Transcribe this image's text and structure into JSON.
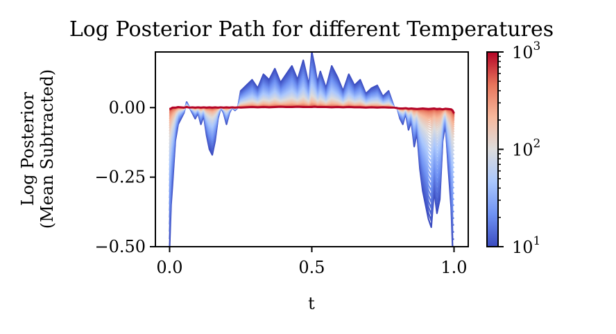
{
  "chart_data": {
    "type": "line",
    "title": "Log Posterior Path for different Temperatures",
    "xlabel": "t",
    "ylabel_lines": [
      "Log Posterior",
      "(Mean Subtracted)"
    ],
    "xlim": [
      -0.05,
      1.05
    ],
    "ylim": [
      -0.5,
      0.2
    ],
    "x_ticks": [
      {
        "value": 0.0,
        "label": "0.0"
      },
      {
        "value": 0.5,
        "label": "0.5"
      },
      {
        "value": 1.0,
        "label": "1.0"
      }
    ],
    "y_ticks": [
      {
        "value": 0.0,
        "label": "0.00"
      },
      {
        "value": -0.25,
        "label": "−0.25"
      },
      {
        "value": -0.5,
        "label": "−0.50"
      }
    ],
    "colorbar": {
      "scale": "log",
      "range": [
        10,
        1000
      ],
      "colormap": "coolwarm",
      "ticks": [
        {
          "value": 10,
          "base": "10",
          "exp": "1"
        },
        {
          "value": 100,
          "base": "10",
          "exp": "2"
        },
        {
          "value": 1000,
          "base": "10",
          "exp": "3"
        }
      ],
      "colors": [
        "#3b4cc0",
        "#6f92f3",
        "#aac7fd",
        "#dddcdc",
        "#f7b89c",
        "#e7745b",
        "#b40426"
      ]
    },
    "paths": {
      "x": [
        0.0,
        0.005,
        0.01,
        0.02,
        0.03,
        0.05,
        0.06,
        0.07,
        0.08,
        0.09,
        0.1,
        0.11,
        0.12,
        0.13,
        0.14,
        0.15,
        0.16,
        0.17,
        0.18,
        0.19,
        0.2,
        0.21,
        0.22,
        0.23,
        0.24,
        0.25,
        0.27,
        0.29,
        0.31,
        0.33,
        0.35,
        0.37,
        0.39,
        0.41,
        0.43,
        0.45,
        0.47,
        0.49,
        0.5,
        0.51,
        0.52,
        0.53,
        0.55,
        0.57,
        0.59,
        0.61,
        0.63,
        0.65,
        0.67,
        0.69,
        0.71,
        0.73,
        0.75,
        0.77,
        0.79,
        0.8,
        0.81,
        0.82,
        0.83,
        0.84,
        0.85,
        0.86,
        0.87,
        0.88,
        0.89,
        0.9,
        0.91,
        0.92,
        0.93,
        0.94,
        0.95,
        0.96,
        0.97,
        0.98,
        0.99,
        0.995,
        1.0
      ],
      "low_temperature": [
        -0.5,
        -0.35,
        -0.28,
        -0.12,
        -0.06,
        -0.02,
        0.02,
        0.0,
        -0.02,
        -0.04,
        -0.02,
        -0.06,
        -0.03,
        -0.1,
        -0.15,
        -0.17,
        -0.12,
        -0.04,
        0.0,
        -0.02,
        -0.06,
        -0.02,
        0.0,
        -0.01,
        0.0,
        0.06,
        0.08,
        0.1,
        0.07,
        0.12,
        0.1,
        0.14,
        0.09,
        0.12,
        0.15,
        0.1,
        0.17,
        0.08,
        0.2,
        0.15,
        0.09,
        0.13,
        0.07,
        0.15,
        0.11,
        0.06,
        0.12,
        0.08,
        0.1,
        0.05,
        0.07,
        0.08,
        0.04,
        0.06,
        0.0,
        0.0,
        -0.04,
        -0.06,
        -0.02,
        -0.08,
        -0.05,
        -0.14,
        -0.09,
        -0.22,
        -0.3,
        -0.35,
        -0.4,
        -0.43,
        -0.3,
        -0.38,
        -0.33,
        -0.12,
        -0.06,
        -0.22,
        -0.36,
        -0.5,
        -0.5
      ],
      "high_temperature": [
        -0.005,
        -0.003,
        0.0,
        0.0,
        0.002,
        0.0,
        0.002,
        0.0,
        0.001,
        0.0,
        0.001,
        0.0,
        0.001,
        0.0,
        0.001,
        0.0,
        0.001,
        0.0,
        0.001,
        0.0,
        0.001,
        0.0,
        0.001,
        0.0,
        0.001,
        0.0,
        0.001,
        0.002,
        0.001,
        0.002,
        0.001,
        0.002,
        0.003,
        0.002,
        0.002,
        0.003,
        0.002,
        0.002,
        0.002,
        0.003,
        0.002,
        0.002,
        0.002,
        0.001,
        0.002,
        0.001,
        0.002,
        0.001,
        0.001,
        0.0,
        0.001,
        0.0,
        0.001,
        0.0,
        0.0,
        -0.002,
        -0.003,
        -0.003,
        -0.002,
        -0.004,
        -0.003,
        -0.004,
        -0.005,
        -0.004,
        -0.003,
        -0.004,
        -0.005,
        -0.004,
        -0.003,
        -0.005,
        -0.004,
        -0.006,
        -0.004,
        -0.005,
        -0.006,
        -0.01,
        -0.02
      ]
    }
  }
}
